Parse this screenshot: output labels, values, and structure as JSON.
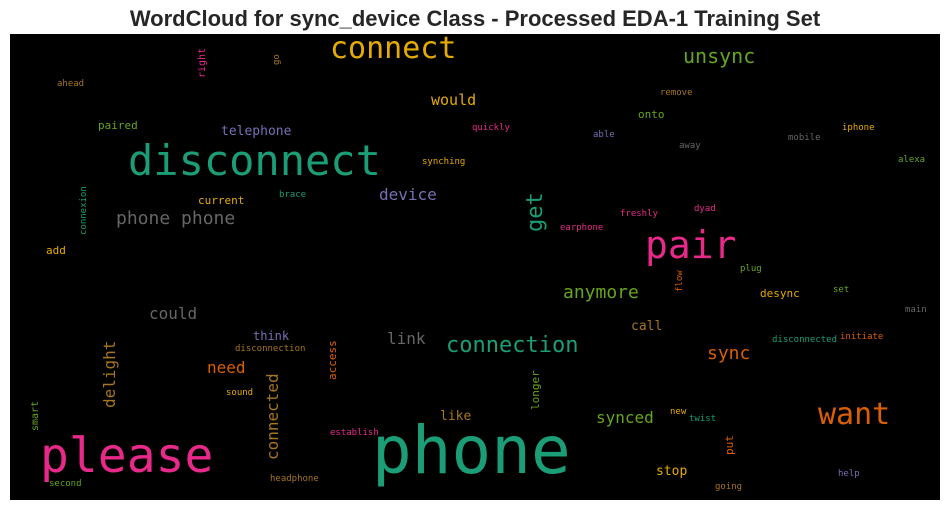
{
  "title": "WordCloud for sync_device Class - Processed EDA-1 Training Set",
  "words": [
    {
      "text": "phone",
      "color": "#1b9e77"
    },
    {
      "text": "please",
      "color": "#e7298a"
    },
    {
      "text": "disconnect",
      "color": "#1b9e77"
    },
    {
      "text": "pair",
      "color": "#e7298a"
    },
    {
      "text": "want",
      "color": "#d95f02"
    },
    {
      "text": "connect",
      "color": "#e6ab02"
    },
    {
      "text": "connection",
      "color": "#1b9e77"
    },
    {
      "text": "get",
      "color": "#1b9e77"
    },
    {
      "text": "unsync",
      "color": "#66a61e"
    },
    {
      "text": "phone phone",
      "color": "#666666"
    },
    {
      "text": "anymore",
      "color": "#66a61e"
    },
    {
      "text": "sync",
      "color": "#d95f02"
    },
    {
      "text": "device",
      "color": "#7570b3"
    },
    {
      "text": "synced",
      "color": "#66a61e"
    },
    {
      "text": "connected",
      "color": "#a6761d"
    },
    {
      "text": "delight",
      "color": "#a6761d"
    },
    {
      "text": "need",
      "color": "#d95f02"
    },
    {
      "text": "could",
      "color": "#666666"
    },
    {
      "text": "link",
      "color": "#666666"
    },
    {
      "text": "would",
      "color": "#e6ab02"
    },
    {
      "text": "telephone",
      "color": "#7570b3"
    },
    {
      "text": "like",
      "color": "#a6761d"
    },
    {
      "text": "stop",
      "color": "#e6ab02"
    },
    {
      "text": "call",
      "color": "#a6761d"
    },
    {
      "text": "think",
      "color": "#7570b3"
    },
    {
      "text": "current",
      "color": "#e6ab02"
    },
    {
      "text": "access",
      "color": "#d95f02"
    },
    {
      "text": "longer",
      "color": "#66a61e"
    },
    {
      "text": "put",
      "color": "#d95f02"
    },
    {
      "text": "paired",
      "color": "#66a61e"
    },
    {
      "text": "onto",
      "color": "#66a61e"
    },
    {
      "text": "desync",
      "color": "#e6ab02"
    },
    {
      "text": "add",
      "color": "#e6ab02"
    },
    {
      "text": "smart",
      "color": "#66a61e"
    },
    {
      "text": "right",
      "color": "#e7298a"
    },
    {
      "text": "go",
      "color": "#a6761d"
    },
    {
      "text": "ahead",
      "color": "#a6761d"
    },
    {
      "text": "remove",
      "color": "#a6761d"
    },
    {
      "text": "quickly",
      "color": "#e7298a"
    },
    {
      "text": "able",
      "color": "#7570b3"
    },
    {
      "text": "mobile",
      "color": "#666666"
    },
    {
      "text": "iphone",
      "color": "#e6ab02"
    },
    {
      "text": "away",
      "color": "#666666"
    },
    {
      "text": "synching",
      "color": "#e6ab02"
    },
    {
      "text": "alexa",
      "color": "#66a61e"
    },
    {
      "text": "connexion",
      "color": "#1b9e77"
    },
    {
      "text": "brace",
      "color": "#1b9e77"
    },
    {
      "text": "dyad",
      "color": "#e7298a"
    },
    {
      "text": "freshly",
      "color": "#e7298a"
    },
    {
      "text": "earphone",
      "color": "#e7298a"
    },
    {
      "text": "plug",
      "color": "#66a61e"
    },
    {
      "text": "flow",
      "color": "#d95f02"
    },
    {
      "text": "set",
      "color": "#66a61e"
    },
    {
      "text": "main",
      "color": "#666666"
    },
    {
      "text": "disconnected",
      "color": "#1b9e77"
    },
    {
      "text": "initiate",
      "color": "#d95f02"
    },
    {
      "text": "disconnection",
      "color": "#a6761d"
    },
    {
      "text": "sound",
      "color": "#e6ab02"
    },
    {
      "text": "establish",
      "color": "#e7298a"
    },
    {
      "text": "new",
      "color": "#e6ab02"
    },
    {
      "text": "twist",
      "color": "#1b9e77"
    },
    {
      "text": "headphone",
      "color": "#a6761d"
    },
    {
      "text": "help",
      "color": "#7570b3"
    },
    {
      "text": "going",
      "color": "#a6761d"
    },
    {
      "text": "second",
      "color": "#66a61e"
    }
  ]
}
